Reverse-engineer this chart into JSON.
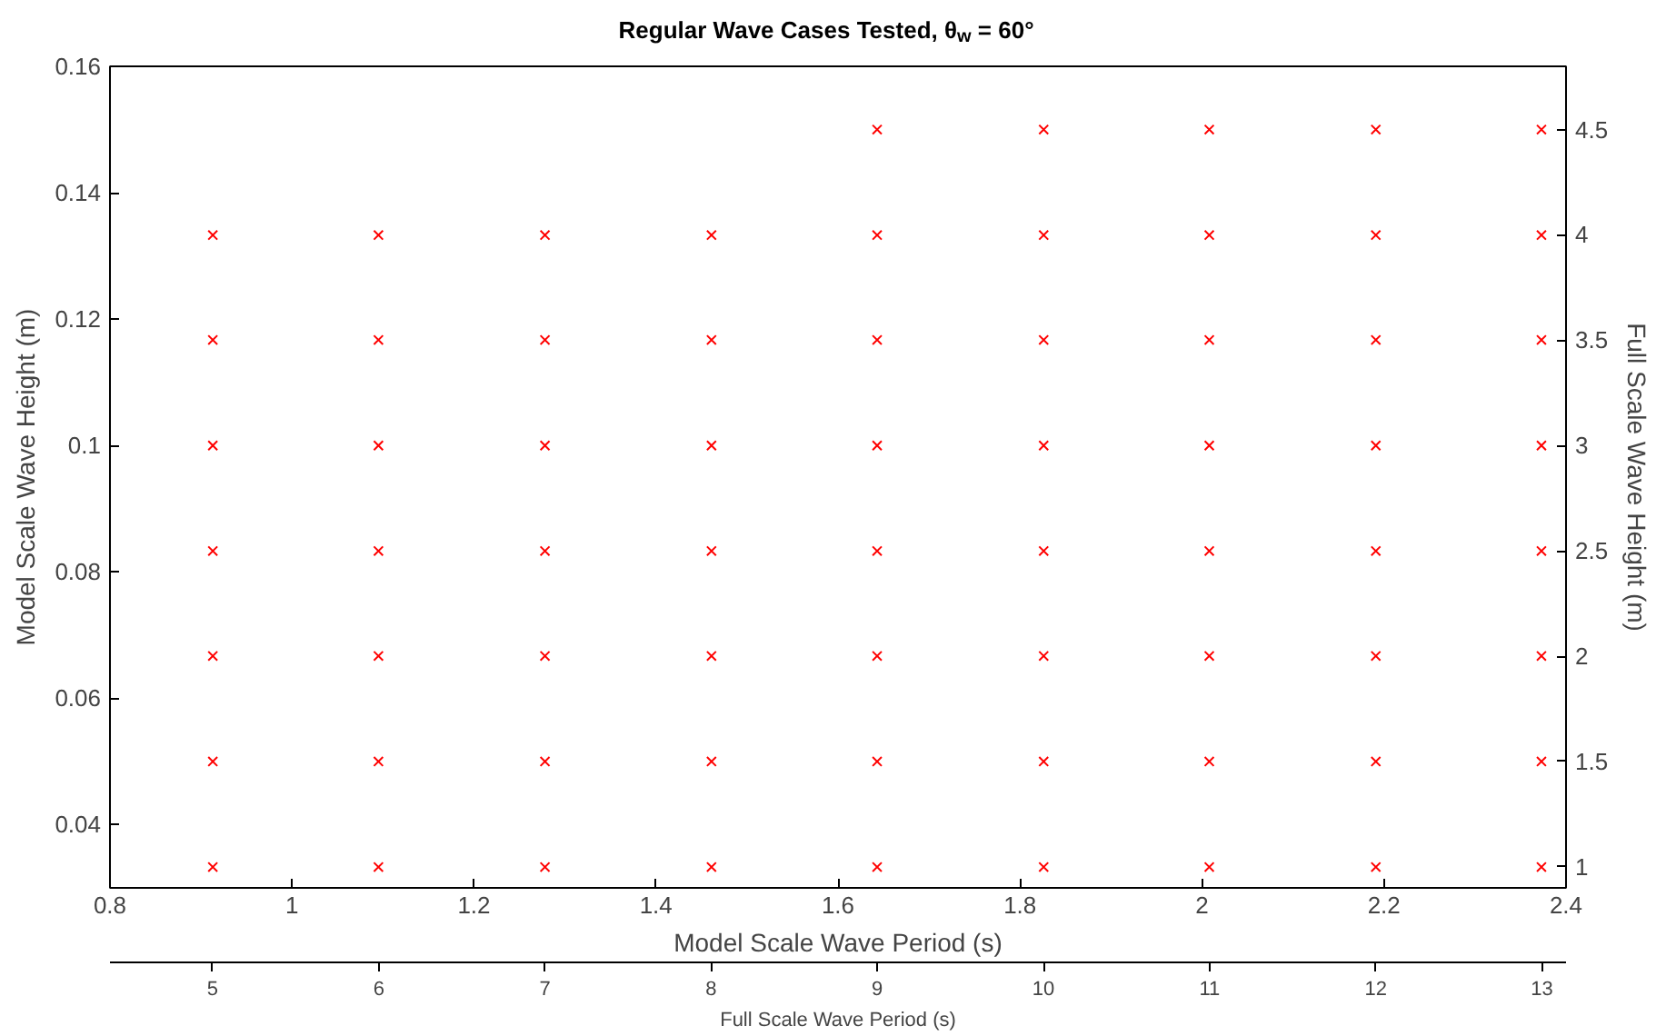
{
  "chart_data": {
    "type": "scatter",
    "title": "Regular Wave Cases Tested, θ$_{w}$ = 60°",
    "xlabel": "Model Scale Wave Period (s)",
    "ylabel": "Model Scale Wave Height (m)",
    "y2label": "Full Scale Wave Height (m)",
    "x2label": "Full Scale Wave Period (s)",
    "x": [
      0.913,
      0.913,
      0.913,
      0.913,
      0.913,
      0.913,
      0.913,
      1.095,
      1.095,
      1.095,
      1.095,
      1.095,
      1.095,
      1.095,
      1.278,
      1.278,
      1.278,
      1.278,
      1.278,
      1.278,
      1.278,
      1.461,
      1.461,
      1.461,
      1.461,
      1.461,
      1.461,
      1.461,
      1.643,
      1.643,
      1.643,
      1.643,
      1.643,
      1.643,
      1.643,
      1.643,
      1.826,
      1.826,
      1.826,
      1.826,
      1.826,
      1.826,
      1.826,
      1.826,
      2.008,
      2.008,
      2.008,
      2.008,
      2.008,
      2.008,
      2.008,
      2.008,
      2.191,
      2.191,
      2.191,
      2.191,
      2.191,
      2.191,
      2.191,
      2.191,
      2.373,
      2.373,
      2.373,
      2.373,
      2.373,
      2.373,
      2.373,
      2.373
    ],
    "values": [
      0.0333,
      0.05,
      0.0667,
      0.0833,
      0.1,
      0.1167,
      0.1333,
      0.0333,
      0.05,
      0.0667,
      0.0833,
      0.1,
      0.1167,
      0.1333,
      0.0333,
      0.05,
      0.0667,
      0.0833,
      0.1,
      0.1167,
      0.1333,
      0.0333,
      0.05,
      0.0667,
      0.0833,
      0.1,
      0.1167,
      0.1333,
      0.0333,
      0.05,
      0.0667,
      0.0833,
      0.1,
      0.1167,
      0.1333,
      0.15,
      0.0333,
      0.05,
      0.0667,
      0.0833,
      0.1,
      0.1167,
      0.1333,
      0.15,
      0.0333,
      0.05,
      0.0667,
      0.0833,
      0.1,
      0.1167,
      0.1333,
      0.15,
      0.0333,
      0.05,
      0.0667,
      0.0833,
      0.1,
      0.1167,
      0.1333,
      0.15,
      0.0333,
      0.05,
      0.0667,
      0.0833,
      0.1,
      0.1167,
      0.1333,
      0.15
    ],
    "color": "#ff0000",
    "marker": "cross",
    "grid": false,
    "xlim": [
      0.8,
      2.4
    ],
    "xticks": [
      0.8,
      1,
      1.2,
      1.4,
      1.6,
      1.8,
      2,
      2.2,
      2.4
    ],
    "ylim": [
      0.03,
      0.16
    ],
    "yticks": [
      0.04,
      0.06,
      0.08,
      0.1,
      0.12,
      0.14,
      0.16
    ],
    "y2lim": [
      0.9,
      4.8
    ],
    "y2ticks": [
      1,
      1.5,
      2,
      2.5,
      3,
      3.5,
      4,
      4.5
    ],
    "x2lim": [
      4.382,
      13.145
    ],
    "x2ticks": [
      5,
      6,
      7,
      8,
      9,
      10,
      11,
      12,
      13
    ]
  }
}
